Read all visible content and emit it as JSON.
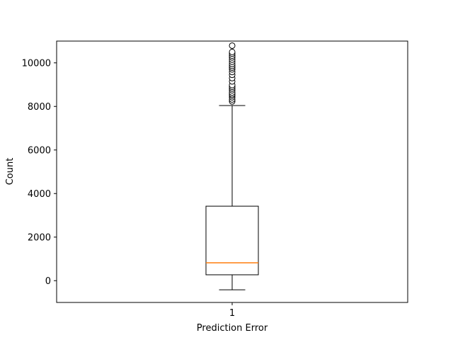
{
  "chart_data": {
    "type": "box",
    "xlabel": "Prediction Error",
    "ylabel": "Count",
    "categories": [
      "1"
    ],
    "ylim": [
      -1000,
      11000
    ],
    "yticks": [
      0,
      2000,
      4000,
      6000,
      8000,
      10000
    ],
    "yticklabels": [
      "0",
      "2000",
      "4000",
      "6000",
      "8000",
      "10000"
    ],
    "grid": false,
    "series": [
      {
        "whisker_low": -420,
        "q1": 270,
        "median": 820,
        "q3": 3420,
        "whisker_high": 8040,
        "outliers": [
          8230,
          8320,
          8420,
          8500,
          8560,
          8640,
          8740,
          8820,
          8900,
          8980,
          9150,
          9300,
          9450,
          9580,
          9700,
          9780,
          9860,
          9950,
          10050,
          10150,
          10250,
          10330,
          10420,
          10500,
          10790
        ]
      }
    ],
    "colors": {
      "box": "#000000",
      "median": "#ff7f0e",
      "outlier_fill": "#ffffff"
    }
  }
}
